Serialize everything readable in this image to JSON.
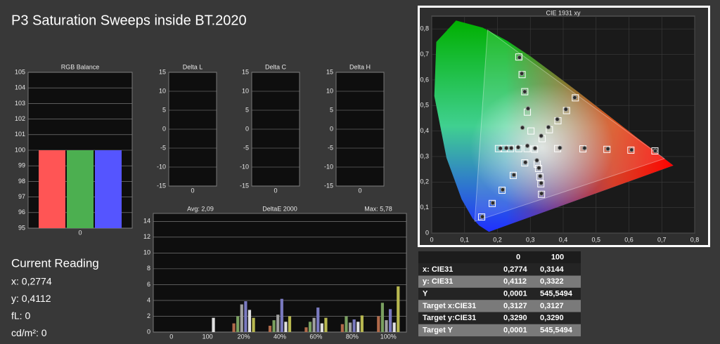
{
  "title": "P3 Saturation Sweeps inside BT.2020",
  "chart_data": [
    {
      "type": "bar",
      "title": "RGB Balance",
      "categories": [
        "0"
      ],
      "series": [
        {
          "color": "#ff5555",
          "values": [
            100
          ]
        },
        {
          "color": "#4caf50",
          "values": [
            100
          ]
        },
        {
          "color": "#5555ff",
          "values": [
            100
          ]
        }
      ],
      "ylim": [
        95,
        105
      ],
      "yticks": [
        95,
        96,
        97,
        98,
        99,
        100,
        101,
        102,
        103,
        104,
        105
      ],
      "grid": true
    },
    {
      "type": "bar",
      "title": "Delta L",
      "categories": [
        "0"
      ],
      "values": [
        0
      ],
      "color": "#999999",
      "ylim": [
        -15,
        15
      ],
      "yticks": [
        -15,
        -10,
        -5,
        0,
        5,
        10,
        15
      ],
      "grid": true
    },
    {
      "type": "bar",
      "title": "Delta C",
      "categories": [
        "0"
      ],
      "values": [
        0
      ],
      "color": "#999999",
      "ylim": [
        -15,
        15
      ],
      "yticks": [
        -15,
        -10,
        -5,
        0,
        5,
        10,
        15
      ],
      "grid": true
    },
    {
      "type": "bar",
      "title": "Delta H",
      "categories": [
        "0"
      ],
      "values": [
        0
      ],
      "color": "#999999",
      "ylim": [
        -15,
        15
      ],
      "yticks": [
        -15,
        -10,
        -5,
        0,
        5,
        10,
        15
      ],
      "grid": true
    },
    {
      "type": "bar",
      "title": "DeltaE 2000",
      "annotations": [
        "Avg: 2,09",
        "Max: 5,78"
      ],
      "categories": [
        "0",
        "100",
        "20%",
        "40%",
        "60%",
        "80%",
        "100%"
      ],
      "values": [
        [
          0,
          0,
          0,
          0,
          0,
          0
        ],
        [
          0,
          0,
          0,
          0,
          1.8,
          0
        ],
        [
          1.1,
          2.0,
          3.5,
          3.9,
          2.8,
          1.8
        ],
        [
          0.8,
          1.5,
          2.2,
          4.2,
          1.3,
          2.0
        ],
        [
          0.6,
          1.3,
          1.8,
          3.1,
          1.1,
          1.8
        ],
        [
          1.0,
          2.0,
          1.2,
          1.6,
          1.3,
          2.1
        ],
        [
          2.0,
          3.7,
          1.5,
          2.9,
          1.2,
          5.78
        ]
      ],
      "colors": [
        "#b06a4a",
        "#7aa060",
        "#a0a0a0",
        "#7a7ac0",
        "#e0e0e0",
        "#b8b850"
      ],
      "ylim": [
        0,
        15
      ],
      "yticks": [
        0,
        2,
        4,
        6,
        8,
        10,
        12,
        14
      ],
      "grid": true
    },
    {
      "type": "scatter",
      "title": "CIE 1931 xy",
      "series": [
        {
          "marker": "square",
          "color": "#ffffff",
          "x": [
            0.3127,
            0.383,
            0.46,
            0.533,
            0.606,
            0.679,
            0.302,
            0.291,
            0.283,
            0.275,
            0.265,
            0.283,
            0.248,
            0.214,
            0.184,
            0.152,
            0.29,
            0.265,
            0.24,
            0.22,
            0.203,
            0.321,
            0.325,
            0.329,
            0.332,
            0.334,
            0.336,
            0.358,
            0.384,
            0.41,
            0.437
          ],
          "y": [
            0.329,
            0.331,
            0.33,
            0.328,
            0.325,
            0.322,
            0.4,
            0.474,
            0.554,
            0.621,
            0.69,
            0.275,
            0.226,
            0.168,
            0.116,
            0.063,
            0.331,
            0.331,
            0.331,
            0.331,
            0.331,
            0.27,
            0.253,
            0.22,
            0.193,
            0.152,
            0.37,
            0.405,
            0.44,
            0.48,
            0.53
          ]
        },
        {
          "marker": "circle",
          "color": "#9a9a9a",
          "x": [
            0.3144,
            0.39,
            0.465,
            0.536,
            0.608,
            0.68,
            0.276,
            0.293,
            0.283,
            0.274,
            0.267,
            0.285,
            0.25,
            0.216,
            0.186,
            0.154,
            0.291,
            0.263,
            0.242,
            0.227,
            0.209,
            0.32,
            0.326,
            0.33,
            0.333,
            0.334,
            0.333,
            0.355,
            0.382,
            0.408,
            0.435
          ],
          "y": [
            0.3322,
            0.334,
            0.333,
            0.33,
            0.326,
            0.322,
            0.413,
            0.488,
            0.554,
            0.625,
            0.688,
            0.277,
            0.228,
            0.17,
            0.118,
            0.064,
            0.342,
            0.336,
            0.333,
            0.333,
            0.332,
            0.285,
            0.255,
            0.223,
            0.196,
            0.155,
            0.381,
            0.415,
            0.446,
            0.485,
            0.531
          ]
        }
      ],
      "xlim": [
        0,
        0.8
      ],
      "ylim": [
        0,
        0.85
      ],
      "xticks": [
        0,
        {
          "value": 0.1,
          "label": "0,1"
        },
        {
          "value": 0.2,
          "label": "0,2"
        },
        {
          "value": 0.3,
          "label": "0,3"
        },
        {
          "value": 0.4,
          "label": "0,4"
        },
        {
          "value": 0.5,
          "label": "0,5"
        },
        {
          "value": 0.6,
          "label": "0,6"
        },
        {
          "value": 0.7,
          "label": "0,7"
        },
        {
          "value": 0.8,
          "label": "0,8"
        }
      ],
      "yticks": [
        0,
        {
          "value": 0.1,
          "label": "0,1"
        },
        {
          "value": 0.2,
          "label": "0,2"
        },
        {
          "value": 0.3,
          "label": "0,3"
        },
        {
          "value": 0.4,
          "label": "0,4"
        },
        {
          "value": 0.5,
          "label": "0,5"
        },
        {
          "value": 0.6,
          "label": "0,6"
        },
        {
          "value": 0.7,
          "label": "0,7"
        },
        {
          "value": 0.8,
          "label": "0,8"
        }
      ],
      "grid": true
    }
  ],
  "current_reading": {
    "title": "Current Reading",
    "lines": [
      "x: 0,2774",
      "y: 0,4112",
      "fL: 0",
      "cd/m²: 0"
    ]
  },
  "table": {
    "header": [
      "0",
      "100"
    ],
    "rows": [
      [
        "x: CIE31",
        "0,2774",
        "0,3144"
      ],
      [
        "y: CIE31",
        "0,4112",
        "0,3322"
      ],
      [
        "Y",
        "0,0001",
        "545,5494"
      ],
      [
        "Target x:CIE31",
        "0,3127",
        "0,3127"
      ],
      [
        "Target y:CIE31",
        "0,3290",
        "0,3290"
      ],
      [
        "Target Y",
        "0,0001",
        "545,5494"
      ]
    ]
  }
}
